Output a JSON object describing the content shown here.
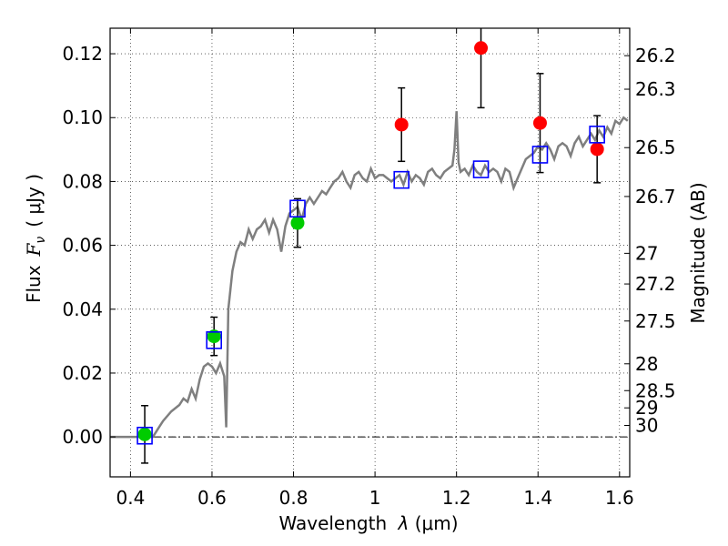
{
  "chart_data": {
    "type": "scatter",
    "xlabel_text": "Wavelength",
    "xlabel_symbol": "λ",
    "xlabel_unit": "(μm)",
    "ylabel_text": "Flux",
    "ylabel_symbol": "F",
    "ylabel_sub": "ν",
    "ylabel_unit": "( μJy )",
    "y2label": "Magnitude (AB)",
    "xlim": [
      0.35,
      1.625
    ],
    "ylim": [
      -0.0125,
      0.128
    ],
    "x_ticks": [
      0.4,
      0.6,
      0.8,
      1.0,
      1.2,
      1.4,
      1.6
    ],
    "x_tick_labels": [
      "0.4",
      "0.6",
      "0.8",
      "1",
      "1.2",
      "1.4",
      "1.6"
    ],
    "y_ticks": [
      0.0,
      0.02,
      0.04,
      0.06,
      0.08,
      0.1,
      0.12
    ],
    "y_tick_labels": [
      "0.00",
      "0.02",
      "0.04",
      "0.06",
      "0.08",
      "0.10",
      "0.12"
    ],
    "mag_ticks": [
      {
        "label": "26.2",
        "flux": 0.1194
      },
      {
        "label": "26.3",
        "flux": 0.1089
      },
      {
        "label": "26.5",
        "flux": 0.0906
      },
      {
        "label": "26.7",
        "flux": 0.0753
      },
      {
        "label": "27",
        "flux": 0.0575
      },
      {
        "label": "27.2",
        "flux": 0.0479
      },
      {
        "label": "27.5",
        "flux": 0.0363
      },
      {
        "label": "28",
        "flux": 0.0229
      },
      {
        "label": "28.5",
        "flux": 0.0145
      },
      {
        "label": "29",
        "flux": 0.0091
      },
      {
        "label": "30",
        "flux": 0.0036
      }
    ],
    "grid": true,
    "zero_line": true,
    "colors": {
      "template": "#7f7f7f",
      "model_box": "#0000ff",
      "green": "#00cc00",
      "red": "#ff0000",
      "errorbar": "#000000"
    },
    "template_spectrum": {
      "x": [
        0.35,
        0.4,
        0.44,
        0.455,
        0.47,
        0.48,
        0.5,
        0.52,
        0.53,
        0.54,
        0.55,
        0.56,
        0.57,
        0.58,
        0.59,
        0.6,
        0.61,
        0.62,
        0.63,
        0.635,
        0.64,
        0.65,
        0.66,
        0.67,
        0.68,
        0.69,
        0.7,
        0.71,
        0.72,
        0.73,
        0.74,
        0.75,
        0.76,
        0.77,
        0.78,
        0.79,
        0.8,
        0.81,
        0.82,
        0.83,
        0.84,
        0.85,
        0.86,
        0.87,
        0.88,
        0.89,
        0.9,
        0.91,
        0.92,
        0.93,
        0.94,
        0.95,
        0.96,
        0.97,
        0.98,
        0.99,
        1.0,
        1.01,
        1.02,
        1.03,
        1.04,
        1.05,
        1.06,
        1.07,
        1.08,
        1.09,
        1.1,
        1.11,
        1.12,
        1.13,
        1.14,
        1.15,
        1.16,
        1.17,
        1.18,
        1.19,
        1.195,
        1.2,
        1.205,
        1.21,
        1.22,
        1.23,
        1.24,
        1.25,
        1.26,
        1.27,
        1.28,
        1.29,
        1.3,
        1.31,
        1.32,
        1.33,
        1.34,
        1.35,
        1.36,
        1.37,
        1.38,
        1.39,
        1.4,
        1.41,
        1.42,
        1.43,
        1.44,
        1.45,
        1.46,
        1.47,
        1.48,
        1.49,
        1.5,
        1.51,
        1.52,
        1.53,
        1.54,
        1.55,
        1.56,
        1.57,
        1.58,
        1.59,
        1.6,
        1.61,
        1.62
      ],
      "y": [
        0.0,
        0.0,
        0.0,
        0.0,
        0.003,
        0.005,
        0.008,
        0.01,
        0.012,
        0.011,
        0.015,
        0.012,
        0.018,
        0.022,
        0.023,
        0.022,
        0.02,
        0.023,
        0.019,
        0.003,
        0.04,
        0.052,
        0.058,
        0.061,
        0.06,
        0.065,
        0.062,
        0.065,
        0.066,
        0.068,
        0.064,
        0.068,
        0.065,
        0.058,
        0.066,
        0.07,
        0.071,
        0.072,
        0.068,
        0.073,
        0.075,
        0.073,
        0.075,
        0.077,
        0.076,
        0.078,
        0.08,
        0.081,
        0.083,
        0.08,
        0.078,
        0.082,
        0.083,
        0.081,
        0.08,
        0.084,
        0.081,
        0.082,
        0.082,
        0.081,
        0.08,
        0.081,
        0.082,
        0.079,
        0.083,
        0.08,
        0.082,
        0.081,
        0.079,
        0.083,
        0.084,
        0.082,
        0.081,
        0.083,
        0.084,
        0.085,
        0.09,
        0.102,
        0.086,
        0.083,
        0.084,
        0.082,
        0.085,
        0.083,
        0.082,
        0.085,
        0.083,
        0.084,
        0.083,
        0.08,
        0.084,
        0.083,
        0.078,
        0.081,
        0.084,
        0.087,
        0.088,
        0.089,
        0.091,
        0.09,
        0.092,
        0.09,
        0.087,
        0.091,
        0.092,
        0.091,
        0.088,
        0.092,
        0.094,
        0.091,
        0.093,
        0.095,
        0.093,
        0.096,
        0.094,
        0.097,
        0.095,
        0.099,
        0.098,
        0.1,
        0.099
      ]
    },
    "model_points": {
      "x": [
        0.435,
        0.605,
        0.81,
        1.065,
        1.26,
        1.405,
        1.545
      ],
      "y": [
        0.0004,
        0.0303,
        0.0715,
        0.0805,
        0.0838,
        0.0884,
        0.0947
      ]
    },
    "green_points": {
      "x": [
        0.435,
        0.605,
        0.81
      ],
      "y": [
        0.0008,
        0.0315,
        0.067
      ],
      "err": [
        0.009,
        0.006,
        0.0076
      ]
    },
    "red_points": {
      "x": [
        1.065,
        1.26,
        1.405,
        1.545
      ],
      "y": [
        0.0978,
        0.1218,
        0.0983,
        0.0901
      ],
      "err": [
        0.0115,
        0.0187,
        0.0155,
        0.0105
      ]
    }
  }
}
